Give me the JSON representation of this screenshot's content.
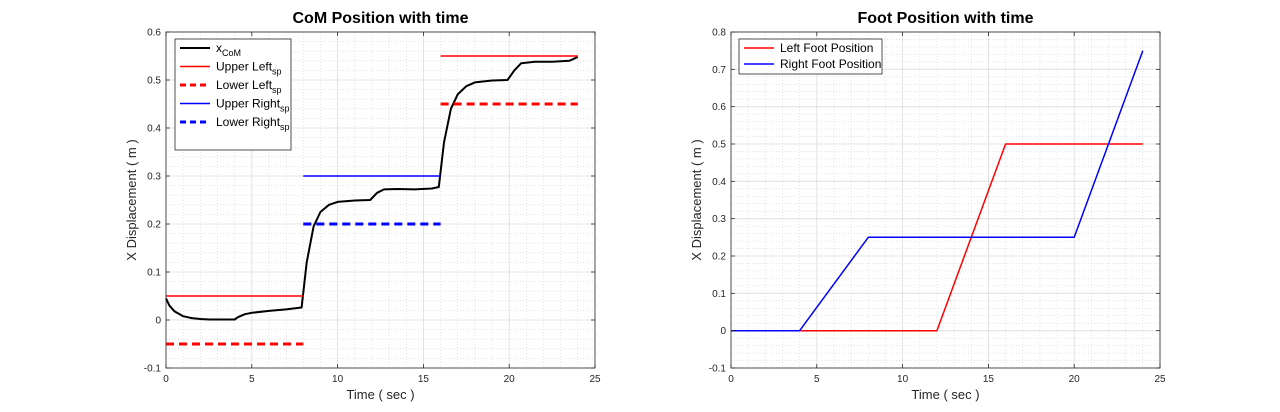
{
  "chart_data": [
    {
      "type": "line",
      "title": "CoM Position with time",
      "xlabel": "Time ( sec )",
      "ylabel": "X Displacement ( m )",
      "xlim": [
        0,
        25
      ],
      "ylim": [
        -0.1,
        0.6
      ],
      "xticks": [
        0,
        5,
        10,
        15,
        20,
        25
      ],
      "yticks": [
        -0.1,
        0,
        0.1,
        0.2,
        0.3,
        0.4,
        0.5,
        0.6
      ],
      "grid": true,
      "minor_grid": true,
      "legend_position": "top-left",
      "series": [
        {
          "name": "x",
          "name_subscript": "CoM",
          "color": "#000000",
          "dash": "solid",
          "width": 2,
          "x": [
            0,
            0.2,
            0.5,
            1,
            1.5,
            2,
            2.5,
            3,
            4,
            4.2,
            4.6,
            5,
            6,
            7,
            7.9,
            8.2,
            8.6,
            9,
            9.5,
            10,
            11,
            11.9,
            12.3,
            12.7,
            13.5,
            14.5,
            15.5,
            15.9,
            16.2,
            16.6,
            17,
            17.5,
            18,
            19,
            19.9,
            20.3,
            20.7,
            21.5,
            22.5,
            23.5,
            24
          ],
          "y": [
            0.045,
            0.03,
            0.018,
            0.008,
            0.004,
            0.002,
            0.001,
            0.001,
            0.001,
            0.006,
            0.012,
            0.015,
            0.019,
            0.022,
            0.026,
            0.12,
            0.195,
            0.225,
            0.24,
            0.246,
            0.249,
            0.25,
            0.265,
            0.272,
            0.273,
            0.272,
            0.274,
            0.277,
            0.37,
            0.44,
            0.47,
            0.487,
            0.495,
            0.499,
            0.5,
            0.52,
            0.535,
            0.538,
            0.538,
            0.54,
            0.548
          ]
        },
        {
          "name": "Upper Left",
          "name_subscript": "sp",
          "color": "#ff0000",
          "dash": "solid",
          "width": 1.5,
          "segments": [
            {
              "x": [
                0,
                8
              ],
              "y": [
                0.05,
                0.05
              ]
            },
            {
              "x": [
                16,
                24
              ],
              "y": [
                0.55,
                0.55
              ]
            }
          ]
        },
        {
          "name": "Lower Left",
          "name_subscript": "sp",
          "color": "#ff0000",
          "dash": "dashed",
          "width": 3,
          "segments": [
            {
              "x": [
                0,
                8
              ],
              "y": [
                -0.05,
                -0.05
              ]
            },
            {
              "x": [
                16,
                24
              ],
              "y": [
                0.45,
                0.45
              ]
            }
          ]
        },
        {
          "name": "Upper Right",
          "name_subscript": "sp",
          "color": "#0000ff",
          "dash": "solid",
          "width": 1.5,
          "segments": [
            {
              "x": [
                8,
                16
              ],
              "y": [
                0.3,
                0.3
              ]
            }
          ]
        },
        {
          "name": "Lower Right",
          "name_subscript": "sp",
          "color": "#0000ff",
          "dash": "dashed",
          "width": 3,
          "segments": [
            {
              "x": [
                8,
                16
              ],
              "y": [
                0.2,
                0.2
              ]
            }
          ]
        }
      ]
    },
    {
      "type": "line",
      "title": "Foot Position with time",
      "xlabel": "Time ( sec )",
      "ylabel": "X Displacement ( m )",
      "xlim": [
        0,
        25
      ],
      "ylim": [
        -0.1,
        0.8
      ],
      "xticks": [
        0,
        5,
        10,
        15,
        20,
        25
      ],
      "yticks": [
        -0.1,
        0,
        0.1,
        0.2,
        0.3,
        0.4,
        0.5,
        0.6,
        0.7,
        0.8
      ],
      "grid": true,
      "minor_grid": true,
      "legend_position": "top-left",
      "series": [
        {
          "name": "Left Foot Position",
          "name_subscript": "",
          "color": "#ff0000",
          "dash": "solid",
          "width": 1.5,
          "x": [
            0,
            12,
            16,
            24
          ],
          "y": [
            0,
            0,
            0.5,
            0.5
          ]
        },
        {
          "name": "Right Foot Position",
          "name_subscript": "",
          "color": "#0000ff",
          "dash": "solid",
          "width": 1.5,
          "x": [
            0,
            4,
            8,
            20,
            24
          ],
          "y": [
            0,
            0,
            0.25,
            0.25,
            0.75
          ]
        }
      ]
    }
  ]
}
